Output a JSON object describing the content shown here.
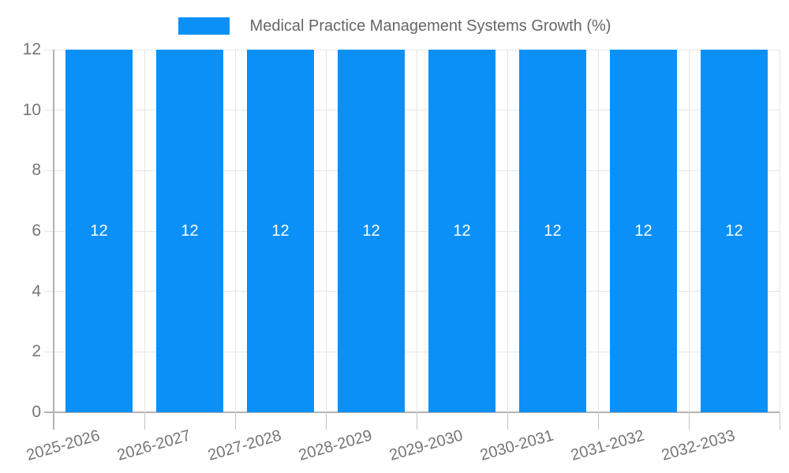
{
  "chart_data": {
    "type": "bar",
    "title": "Medical Practice Management Systems Growth (%)",
    "categories": [
      "2025-2026",
      "2026-2027",
      "2027-2028",
      "2028-2029",
      "2029-2030",
      "2030-2031",
      "2031-2032",
      "2032-2033"
    ],
    "series": [
      {
        "name": "Medical Practice Management Systems Growth (%)",
        "values": [
          12,
          12,
          12,
          12,
          12,
          12,
          12,
          12
        ]
      }
    ],
    "bar_value_labels": [
      "12",
      "12",
      "12",
      "12",
      "12",
      "12",
      "12",
      "12"
    ],
    "xlabel": "",
    "ylabel": "",
    "ylim": [
      0,
      12
    ],
    "yticks": [
      0,
      2,
      4,
      6,
      8,
      10,
      12
    ],
    "grid": true,
    "legend_position": "top",
    "colors": {
      "bar": "#0b90f8",
      "bar_label": "#ffffff",
      "axis_text": "#757575",
      "legend_text": "#666666",
      "gridline": "#e6e6e6",
      "axis_line": "#b3b3b3",
      "tick": "#c2c2c2",
      "background": "#ffffff"
    }
  }
}
